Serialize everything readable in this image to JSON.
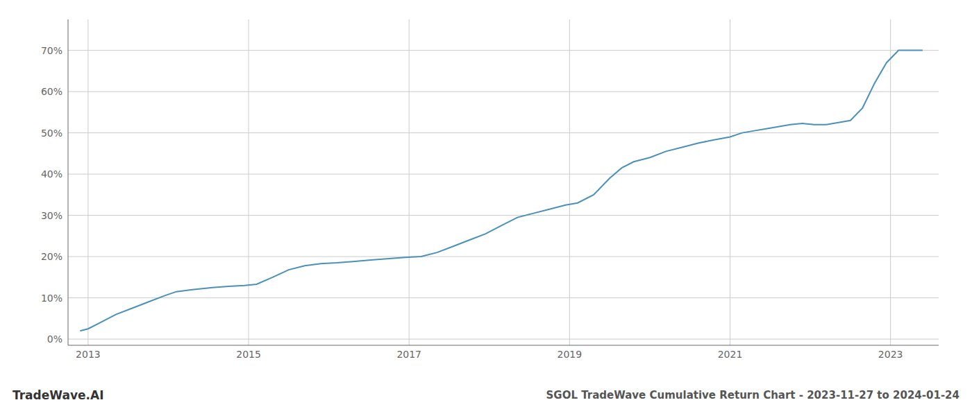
{
  "chart_data": {
    "type": "line",
    "title": "SGOL TradeWave Cumulative Return Chart - 2023-11-27 to 2024-01-24",
    "annotations": [
      "TradeWave.AI"
    ],
    "color": "#4a90b8",
    "grid": true,
    "xlim": [
      2012.75,
      2023.6
    ],
    "xticks": [
      2013,
      2015,
      2017,
      2019,
      2021,
      2023
    ],
    "ylim": [
      -0.015,
      0.775
    ],
    "yticks": [
      {
        "value": 0.0,
        "label": "0%"
      },
      {
        "value": 0.1,
        "label": "10%"
      },
      {
        "value": 0.2,
        "label": "20%"
      },
      {
        "value": 0.3,
        "label": "30%"
      },
      {
        "value": 0.4,
        "label": "40%"
      },
      {
        "value": 0.5,
        "label": "50%"
      },
      {
        "value": 0.6,
        "label": "60%"
      },
      {
        "value": 0.7,
        "label": "70%"
      }
    ],
    "x": [
      2012.9,
      2013.0,
      2013.15,
      2013.35,
      2013.55,
      2013.75,
      2013.95,
      2014.1,
      2014.3,
      2014.55,
      2014.75,
      2014.95,
      2015.1,
      2015.3,
      2015.5,
      2015.7,
      2015.9,
      2016.1,
      2016.3,
      2016.55,
      2016.75,
      2016.95,
      2017.15,
      2017.35,
      2017.55,
      2017.75,
      2017.95,
      2018.15,
      2018.35,
      2018.55,
      2018.75,
      2018.95,
      2019.1,
      2019.3,
      2019.5,
      2019.65,
      2019.8,
      2020.0,
      2020.2,
      2020.4,
      2020.6,
      2020.8,
      2021.0,
      2021.15,
      2021.3,
      2021.45,
      2021.6,
      2021.75,
      2021.9,
      2022.05,
      2022.2,
      2022.35,
      2022.5,
      2022.65,
      2022.8,
      2022.95,
      2023.1,
      2023.4
    ],
    "values": [
      0.02,
      0.025,
      0.04,
      0.06,
      0.075,
      0.09,
      0.105,
      0.115,
      0.12,
      0.125,
      0.128,
      0.13,
      0.133,
      0.15,
      0.168,
      0.178,
      0.183,
      0.185,
      0.188,
      0.192,
      0.195,
      0.198,
      0.2,
      0.21,
      0.225,
      0.24,
      0.255,
      0.275,
      0.295,
      0.305,
      0.315,
      0.325,
      0.33,
      0.35,
      0.39,
      0.415,
      0.43,
      0.44,
      0.455,
      0.465,
      0.475,
      0.483,
      0.49,
      0.5,
      0.505,
      0.51,
      0.515,
      0.52,
      0.523,
      0.52,
      0.52,
      0.525,
      0.53,
      0.56,
      0.62,
      0.67,
      0.7,
      0.7
    ]
  }
}
